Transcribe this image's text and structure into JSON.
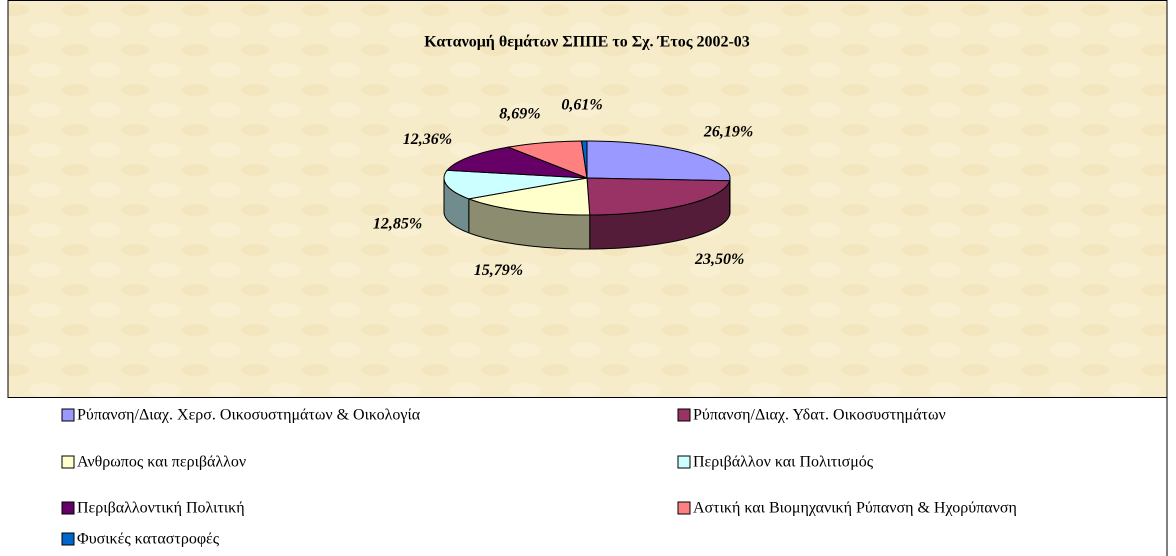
{
  "chart_data": {
    "type": "pie3d",
    "title": "Κατανομή θεμάτων ΣΠΠΕ το Σχ. Έτος 2002-03",
    "categories": [
      "Ρύπανση/Διαχ. Χερσ. Οικοσυστημάτων & Οικολογία",
      "Ρύπανση/Διαχ. Υδατ. Οικοσυστημάτων",
      "Ανθρωπος και περιβάλλον",
      "Περιβάλλον και Πολιτισμός",
      "Περιβαλλοντική Πολιτική",
      "Αστική και Βιομηχανική Ρύπανση & Ηχορύπανση",
      "Φυσικές καταστροφές"
    ],
    "values": [
      26.19,
      23.5,
      15.79,
      12.85,
      12.36,
      8.69,
      0.61
    ],
    "value_labels": [
      "26,19%",
      "23,50%",
      "15,79%",
      "12,85%",
      "12,36%",
      "8,69%",
      "0,61%"
    ],
    "colors": [
      "#9999ff",
      "#993366",
      "#ffffcc",
      "#ccffff",
      "#660066",
      "#ff8080",
      "#0066cc"
    ]
  }
}
